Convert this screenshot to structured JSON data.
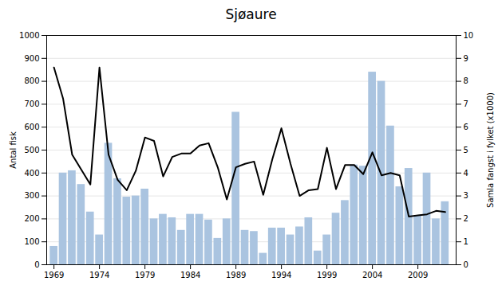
{
  "chart_data": {
    "type": "bar",
    "title": "Sjøaure",
    "ylabel": "Antal fisk",
    "y2label": "Samla fangst i fylket (x1000)",
    "x": [
      1969,
      1970,
      1971,
      1972,
      1973,
      1974,
      1975,
      1976,
      1977,
      1978,
      1979,
      1980,
      1981,
      1982,
      1983,
      1984,
      1985,
      1986,
      1987,
      1988,
      1989,
      1990,
      1991,
      1992,
      1993,
      1994,
      1995,
      1996,
      1997,
      1998,
      1999,
      2000,
      2001,
      2002,
      2003,
      2004,
      2005,
      2006,
      2007,
      2008,
      2009,
      2010,
      2011,
      2012
    ],
    "series": [
      {
        "type": "bar",
        "color": "#aac4e0",
        "values": [
          80,
          400,
          410,
          350,
          230,
          130,
          530,
          375,
          295,
          300,
          330,
          200,
          220,
          205,
          150,
          220,
          220,
          195,
          115,
          200,
          665,
          150,
          145,
          50,
          160,
          160,
          130,
          165,
          205,
          60,
          130,
          225,
          280,
          435,
          430,
          840,
          800,
          605,
          340,
          420,
          215,
          400,
          200,
          275
        ]
      },
      {
        "type": "line",
        "color": "#000000",
        "axis": "y2",
        "values": [
          8.6,
          7.25,
          4.8,
          4.15,
          3.5,
          8.6,
          4.8,
          3.7,
          3.25,
          4.1,
          5.55,
          5.4,
          3.85,
          4.7,
          4.85,
          4.85,
          5.2,
          5.3,
          4.25,
          2.85,
          4.25,
          4.4,
          4.5,
          3.05,
          4.6,
          5.95,
          4.4,
          3.0,
          3.25,
          3.3,
          5.1,
          3.3,
          4.35,
          4.35,
          3.95,
          4.9,
          3.9,
          4.0,
          3.9,
          2.1,
          2.15,
          2.2,
          2.35,
          2.3
        ]
      }
    ],
    "xlim": [
      1968.2,
      2013.2
    ],
    "xticks": [
      1969,
      1974,
      1979,
      1984,
      1989,
      1994,
      1999,
      2004,
      2009
    ],
    "ylim": [
      0,
      1000
    ],
    "yticks": [
      0,
      100,
      200,
      300,
      400,
      500,
      600,
      700,
      800,
      900,
      1000
    ],
    "y2lim": [
      0,
      10
    ],
    "y2ticks": [
      0,
      1,
      2,
      3,
      4,
      5,
      6,
      7,
      8,
      9,
      10
    ],
    "grid": true
  }
}
